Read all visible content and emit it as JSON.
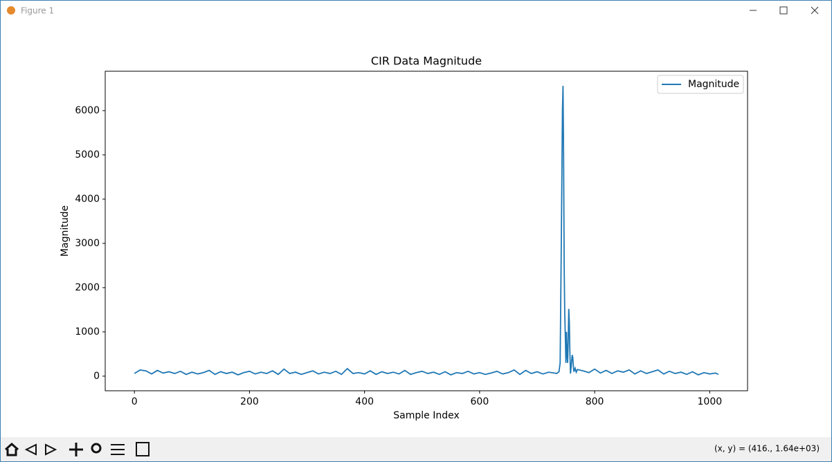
{
  "window": {
    "title": "Figure 1",
    "status": "(x, y) = (416., 1.64e+03)"
  },
  "chart_data": {
    "type": "line",
    "title": "CIR Data Magnitude",
    "xlabel": "Sample Index",
    "ylabel": "Magnitude",
    "x": [
      0,
      10,
      20,
      30,
      40,
      50,
      60,
      70,
      80,
      90,
      100,
      110,
      120,
      130,
      140,
      150,
      160,
      170,
      180,
      190,
      200,
      210,
      220,
      230,
      240,
      250,
      260,
      270,
      280,
      290,
      300,
      310,
      320,
      330,
      340,
      350,
      360,
      370,
      380,
      390,
      400,
      410,
      420,
      430,
      440,
      450,
      460,
      470,
      480,
      490,
      500,
      510,
      520,
      530,
      540,
      550,
      560,
      570,
      580,
      590,
      600,
      610,
      620,
      630,
      640,
      650,
      660,
      670,
      680,
      690,
      700,
      710,
      720,
      730,
      734,
      738,
      740,
      742,
      744,
      745,
      746,
      747,
      748,
      749,
      750,
      751,
      752,
      753,
      754,
      755,
      756,
      757,
      758,
      759,
      760,
      761,
      762,
      763,
      764,
      766,
      768,
      770,
      780,
      790,
      800,
      810,
      820,
      830,
      840,
      850,
      860,
      870,
      880,
      890,
      900,
      910,
      920,
      930,
      940,
      950,
      960,
      970,
      980,
      990,
      1000,
      1010,
      1015
    ],
    "series": [
      {
        "name": "Magnitude",
        "color": "#1f77b4",
        "values": [
          60,
          140,
          120,
          50,
          130,
          70,
          100,
          60,
          110,
          40,
          90,
          50,
          80,
          130,
          40,
          100,
          60,
          90,
          30,
          80,
          110,
          50,
          90,
          60,
          120,
          40,
          160,
          60,
          90,
          40,
          80,
          120,
          50,
          90,
          60,
          110,
          40,
          170,
          60,
          80,
          50,
          120,
          40,
          100,
          60,
          90,
          50,
          130,
          40,
          80,
          110,
          60,
          90,
          40,
          100,
          30,
          80,
          60,
          110,
          50,
          80,
          40,
          70,
          110,
          50,
          80,
          140,
          40,
          130,
          60,
          100,
          50,
          90,
          70,
          60,
          100,
          300,
          3000,
          6000,
          6560,
          5000,
          2500,
          1430,
          900,
          300,
          1000,
          500,
          300,
          800,
          1520,
          1200,
          500,
          60,
          200,
          350,
          480,
          420,
          200,
          100,
          180,
          90,
          150,
          120,
          80,
          160,
          70,
          130,
          60,
          120,
          90,
          140,
          50,
          120,
          60,
          100,
          140,
          50,
          110,
          60,
          90,
          40,
          100,
          30,
          80,
          50,
          70,
          40
        ]
      }
    ],
    "xlim": [
      -50.75,
      1065.75
    ],
    "ylim": [
      -330,
      6890
    ],
    "xticks": [
      0,
      200,
      400,
      600,
      800,
      1000
    ],
    "yticks": [
      0,
      1000,
      2000,
      3000,
      4000,
      5000,
      6000
    ],
    "legend": "upper right"
  }
}
